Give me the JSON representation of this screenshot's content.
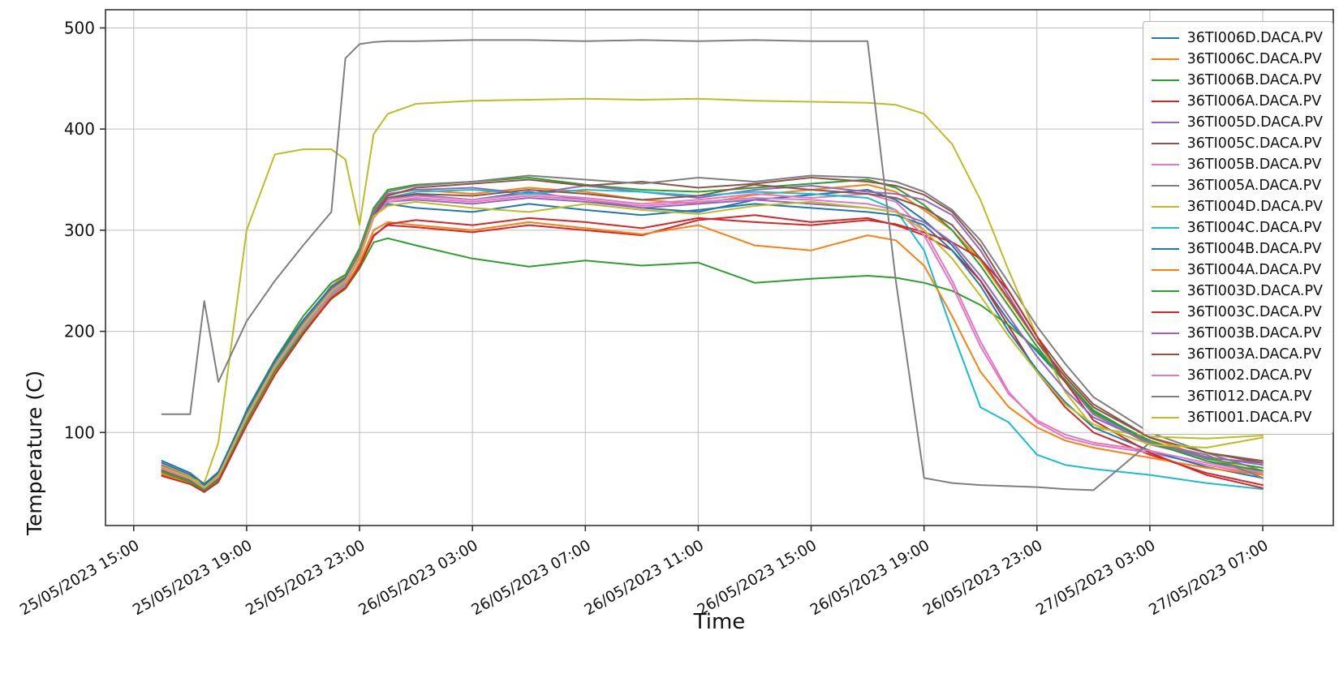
{
  "figure": {
    "xlabel": "Time",
    "ylabel": "Temperature (C)",
    "background": "#ffffff",
    "grid_color": "#bdbdbd",
    "spine_color": "#333333"
  },
  "chart_data": {
    "type": "line",
    "title": "",
    "xlabel": "Time",
    "ylabel": "Temperature (C)",
    "grid": true,
    "legend_position": "upper right",
    "xlim": [
      -1,
      42.5
    ],
    "ylim": [
      8,
      518
    ],
    "x_axis_origin": "25/05/2023 15:00",
    "xtick_hours": [
      0,
      4,
      8,
      12,
      16,
      20,
      24,
      28,
      32,
      36,
      40
    ],
    "xtick_labels": [
      "25/05/2023 15:00",
      "25/05/2023 19:00",
      "25/05/2023 23:00",
      "26/05/2023 03:00",
      "26/05/2023 07:00",
      "26/05/2023 11:00",
      "26/05/2023 15:00",
      "26/05/2023 19:00",
      "26/05/2023 23:00",
      "27/05/2023 03:00",
      "27/05/2023 07:00"
    ],
    "ytick_values": [
      100,
      200,
      300,
      400,
      500
    ],
    "x_hours": [
      1,
      2,
      2.5,
      3,
      4,
      5,
      6,
      7,
      7.5,
      8,
      8.5,
      9,
      10,
      12,
      14,
      16,
      18,
      20,
      22,
      24,
      26,
      27,
      28,
      29,
      30,
      31,
      32,
      33,
      34,
      36,
      38,
      40
    ],
    "series": [
      {
        "name": "36TI006D.DACA.PV",
        "color": "#1f77b4",
        "values": [
          70,
          58,
          48,
          60,
          120,
          170,
          210,
          243,
          252,
          275,
          315,
          330,
          335,
          330,
          338,
          330,
          322,
          318,
          330,
          335,
          340,
          330,
          310,
          285,
          250,
          210,
          180,
          150,
          120,
          90,
          72,
          58
        ]
      },
      {
        "name": "36TI006C.DACA.PV",
        "color": "#ff7f0e",
        "values": [
          68,
          56,
          46,
          58,
          118,
          168,
          208,
          245,
          255,
          280,
          320,
          335,
          340,
          336,
          342,
          338,
          330,
          326,
          335,
          340,
          345,
          338,
          320,
          300,
          270,
          230,
          190,
          155,
          125,
          95,
          75,
          60
        ]
      },
      {
        "name": "36TI006B.DACA.PV",
        "color": "#2ca02c",
        "values": [
          66,
          54,
          44,
          56,
          122,
          172,
          215,
          248,
          256,
          282,
          322,
          340,
          345,
          348,
          352,
          345,
          340,
          338,
          342,
          346,
          350,
          342,
          325,
          300,
          265,
          225,
          185,
          150,
          120,
          92,
          74,
          65
        ]
      },
      {
        "name": "36TI006A.DACA.PV",
        "color": "#d62728",
        "values": [
          58,
          50,
          42,
          52,
          108,
          158,
          198,
          235,
          245,
          265,
          295,
          305,
          303,
          298,
          305,
          300,
          295,
          310,
          315,
          308,
          312,
          305,
          295,
          280,
          250,
          205,
          160,
          125,
          100,
          78,
          60,
          48
        ]
      },
      {
        "name": "36TI005D.DACA.PV",
        "color": "#9467bd",
        "values": [
          64,
          53,
          45,
          55,
          116,
          166,
          206,
          240,
          250,
          278,
          318,
          336,
          340,
          342,
          336,
          344,
          338,
          332,
          340,
          344,
          338,
          336,
          330,
          315,
          280,
          235,
          190,
          150,
          118,
          88,
          75,
          70
        ]
      },
      {
        "name": "36TI005C.DACA.PV",
        "color": "#8c564b",
        "values": [
          62,
          52,
          44,
          54,
          114,
          164,
          204,
          238,
          248,
          276,
          316,
          334,
          342,
          346,
          350,
          344,
          348,
          342,
          346,
          352,
          348,
          344,
          335,
          318,
          285,
          240,
          195,
          158,
          128,
          95,
          80,
          72
        ]
      },
      {
        "name": "36TI005B.DACA.PV",
        "color": "#e377c2",
        "values": [
          60,
          51,
          43,
          53,
          112,
          162,
          202,
          236,
          246,
          274,
          314,
          330,
          334,
          330,
          336,
          332,
          326,
          330,
          336,
          332,
          336,
          328,
          300,
          250,
          190,
          140,
          110,
          95,
          88,
          80,
          68,
          58
        ]
      },
      {
        "name": "36TI005A.DACA.PV",
        "color": "#7f7f7f",
        "values": [
          65,
          55,
          46,
          57,
          119,
          169,
          209,
          242,
          252,
          279,
          319,
          338,
          344,
          348,
          354,
          350,
          346,
          352,
          348,
          354,
          352,
          348,
          338,
          320,
          290,
          248,
          205,
          168,
          135,
          100,
          80,
          62
        ]
      },
      {
        "name": "36TI004D.DACA.PV",
        "color": "#bcbd22",
        "values": [
          60,
          55,
          50,
          90,
          300,
          375,
          380,
          380,
          370,
          305,
          395,
          415,
          425,
          428,
          429,
          430,
          429,
          430,
          428,
          427,
          426,
          424,
          415,
          385,
          330,
          260,
          195,
          140,
          105,
          96,
          94,
          97
        ]
      },
      {
        "name": "36TI004C.DACA.PV",
        "color": "#17becf",
        "values": [
          63,
          52,
          44,
          54,
          113,
          163,
          203,
          237,
          247,
          275,
          315,
          332,
          338,
          340,
          336,
          340,
          338,
          334,
          338,
          336,
          332,
          320,
          280,
          200,
          125,
          110,
          78,
          68,
          64,
          58,
          50,
          44
        ]
      },
      {
        "name": "36TI004B.DACA.PV",
        "color": "#1f77b4",
        "values": [
          72,
          60,
          49,
          61,
          121,
          171,
          211,
          244,
          253,
          276,
          316,
          326,
          322,
          318,
          326,
          320,
          315,
          320,
          326,
          322,
          318,
          315,
          305,
          280,
          245,
          200,
          162,
          130,
          105,
          82,
          66,
          55
        ]
      },
      {
        "name": "36TI004A.DACA.PV",
        "color": "#ff7f0e",
        "values": [
          59,
          50,
          43,
          52,
          110,
          160,
          200,
          234,
          244,
          268,
          300,
          308,
          305,
          300,
          308,
          302,
          296,
          305,
          285,
          280,
          295,
          290,
          265,
          215,
          160,
          125,
          105,
          92,
          85,
          75,
          65,
          58
        ]
      },
      {
        "name": "36TI003D.DACA.PV",
        "color": "#2ca02c",
        "values": [
          61,
          51,
          43,
          53,
          111,
          161,
          199,
          232,
          242,
          262,
          288,
          292,
          285,
          272,
          264,
          270,
          265,
          268,
          248,
          252,
          255,
          253,
          248,
          240,
          226,
          206,
          182,
          152,
          122,
          90,
          72,
          62
        ]
      },
      {
        "name": "36TI003C.DACA.PV",
        "color": "#d62728",
        "values": [
          57,
          49,
          41,
          51,
          107,
          157,
          197,
          233,
          243,
          264,
          294,
          306,
          310,
          305,
          312,
          308,
          302,
          312,
          308,
          305,
          310,
          306,
          298,
          288,
          272,
          240,
          195,
          150,
          112,
          80,
          58,
          45
        ]
      },
      {
        "name": "36TI003B.DACA.PV",
        "color": "#9467bd",
        "values": [
          67,
          55,
          46,
          57,
          117,
          167,
          207,
          241,
          251,
          277,
          317,
          328,
          330,
          326,
          332,
          328,
          322,
          326,
          330,
          326,
          322,
          318,
          308,
          288,
          255,
          215,
          175,
          142,
          115,
          90,
          76,
          68
        ]
      },
      {
        "name": "36TI003A.DACA.PV",
        "color": "#8c564b",
        "values": [
          63,
          53,
          45,
          55,
          115,
          165,
          205,
          239,
          249,
          275,
          315,
          332,
          336,
          334,
          340,
          336,
          330,
          334,
          345,
          340,
          336,
          332,
          322,
          305,
          272,
          232,
          190,
          155,
          125,
          95,
          80,
          70
        ]
      },
      {
        "name": "36TI002.DACA.PV",
        "color": "#e377c2",
        "values": [
          64,
          54,
          45,
          56,
          114,
          164,
          204,
          238,
          248,
          272,
          312,
          328,
          332,
          328,
          334,
          330,
          324,
          328,
          332,
          330,
          326,
          320,
          295,
          245,
          185,
          138,
          112,
          98,
          90,
          82,
          70,
          60
        ]
      },
      {
        "name": "36TI012.DACA.PV",
        "color": "#7f7f7f",
        "values": [
          118,
          118,
          230,
          150,
          210,
          250,
          285,
          318,
          470,
          484,
          486,
          487,
          487,
          488,
          488,
          487,
          488,
          487,
          488,
          487,
          487,
          250,
          55,
          50,
          48,
          47,
          46,
          44,
          43,
          90,
          78,
          55
        ]
      },
      {
        "name": "36TI001.DACA.PV",
        "color": "#bcbd22",
        "values": [
          66,
          55,
          46,
          57,
          116,
          166,
          206,
          240,
          250,
          274,
          314,
          324,
          328,
          322,
          318,
          326,
          320,
          316,
          324,
          328,
          322,
          318,
          300,
          272,
          235,
          195,
          160,
          128,
          108,
          88,
          85,
          95
        ]
      }
    ]
  }
}
